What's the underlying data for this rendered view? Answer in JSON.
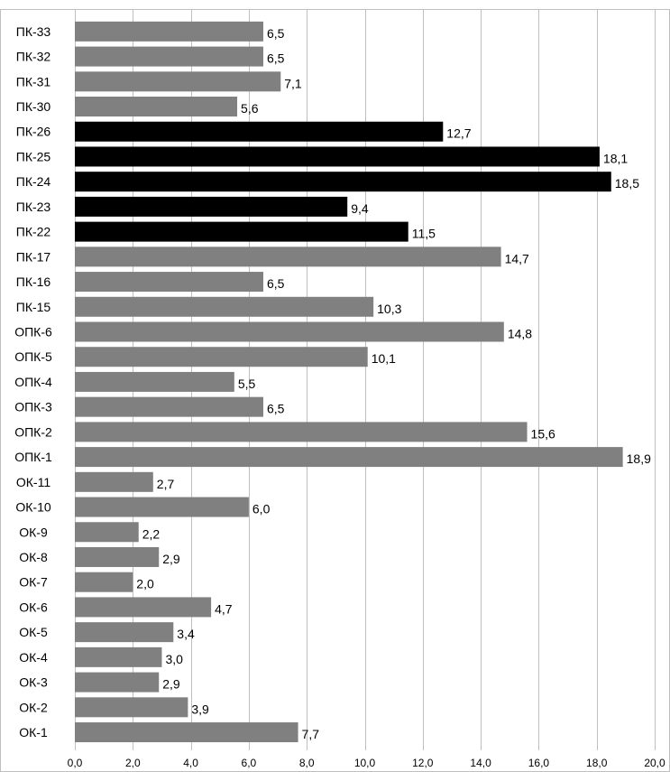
{
  "chart_data": {
    "type": "bar",
    "orientation": "horizontal",
    "categories": [
      "ПК-33",
      "ПК-32",
      "ПК-31",
      "ПК-30",
      "ПК-26",
      "ПК-25",
      "ПК-24",
      "ПК-23",
      "ПК-22",
      "ПК-17",
      "ПК-16",
      "ПК-15",
      "ОПК-6",
      "ОПК-5",
      "ОПК-4",
      "ОПК-3",
      "ОПК-2",
      "ОПК-1",
      "ОК-11",
      "ОК-10",
      "ОК-9",
      "ОК-8",
      "ОК-7",
      "ОК-6",
      "ОК-5",
      "ОК-4",
      "ОК-3",
      "ОК-2",
      "ОК-1"
    ],
    "values": [
      6.5,
      6.5,
      7.1,
      5.6,
      12.7,
      18.1,
      18.5,
      9.4,
      11.5,
      14.7,
      6.5,
      10.3,
      14.8,
      10.1,
      5.5,
      6.5,
      15.6,
      18.9,
      2.7,
      6.0,
      2.2,
      2.9,
      2.0,
      4.7,
      3.4,
      3.0,
      2.9,
      3.9,
      7.7
    ],
    "value_labels": [
      "6,5",
      "6,5",
      "7,1",
      "5,6",
      "12,7",
      "18,1",
      "18,5",
      "9,4",
      "11,5",
      "14,7",
      "6,5",
      "10,3",
      "14,8",
      "10,1",
      "5,5",
      "6,5",
      "15,6",
      "18,9",
      "2,7",
      "6,0",
      "2,2",
      "2,9",
      "2,0",
      "4,7",
      "3,4",
      "3,0",
      "2,9",
      "3,9",
      "7,7"
    ],
    "highlighted": [
      false,
      false,
      false,
      false,
      true,
      true,
      true,
      true,
      true,
      false,
      false,
      false,
      false,
      false,
      false,
      false,
      false,
      false,
      false,
      false,
      false,
      false,
      false,
      false,
      false,
      false,
      false,
      false,
      false
    ],
    "xlim": [
      0,
      20
    ],
    "xticks": [
      0,
      2,
      4,
      6,
      8,
      10,
      12,
      14,
      16,
      18,
      20
    ],
    "xtick_labels": [
      "0,0",
      "2,0",
      "4,0",
      "6,0",
      "8,0",
      "10,0",
      "12,0",
      "14,0",
      "16,0",
      "18,0",
      "20,0"
    ],
    "grid": true,
    "title": "",
    "xlabel": "",
    "ylabel": "",
    "colors": {
      "default": "#808080",
      "highlight": "#000000",
      "grid": "#bfbfbf"
    }
  }
}
